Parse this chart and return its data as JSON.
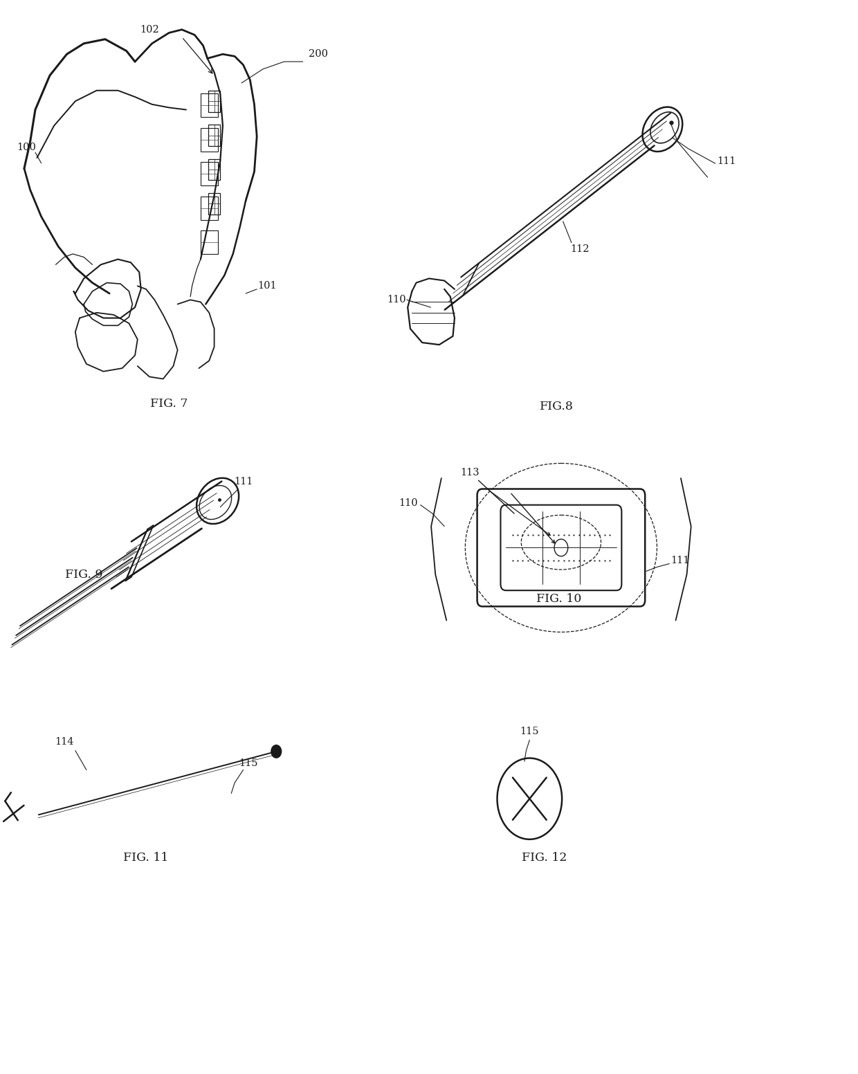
{
  "bg_color": "#ffffff",
  "lc": "#1a1a1a",
  "figsize": [
    12.4,
    15.52
  ],
  "dpi": 100,
  "fig7_label": "FIG. 7",
  "fig8_label": "FIG.8",
  "fig9_label": "FIG. 9",
  "fig10_label": "FIG. 10",
  "fig11_label": "FIG. 11",
  "fig12_label": "FIG. 12"
}
